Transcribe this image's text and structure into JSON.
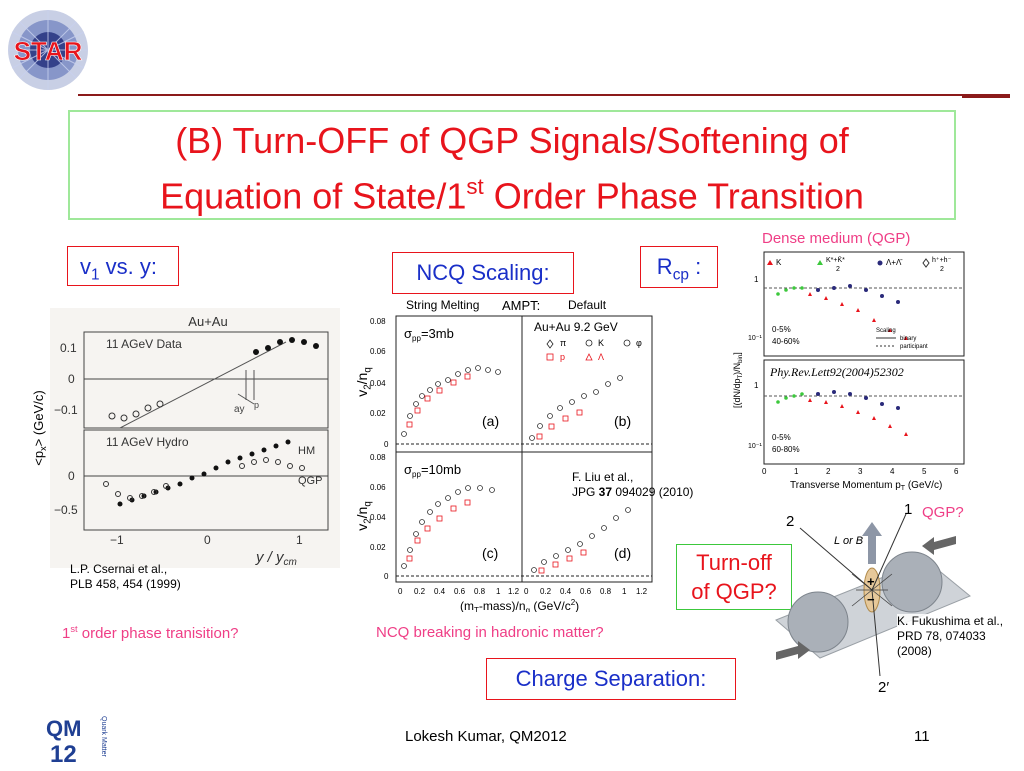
{
  "logos": {
    "star": "STAR",
    "qm_line1": "QM",
    "qm_line2": "12",
    "qm_side": "Quark Matter"
  },
  "title": {
    "line1": "(B) Turn-OFF of QGP Signals/Softening of",
    "line2_pre": "Equation of State/1",
    "line2_sup": "st",
    "line2_post": " Order Phase Transition"
  },
  "sections": {
    "v1_label_pre": "v",
    "v1_label_sub": "1",
    "v1_label_post": " vs. y:",
    "ncq_label": "NCQ Scaling:",
    "rcp_label_pre": "R",
    "rcp_label_sub": "cp",
    "rcp_label_post": " :",
    "charge_sep_label": "Charge Separation:",
    "turn_off_line1": "Turn-off",
    "turn_off_line2": "of QGP?"
  },
  "v1_plot": {
    "ylabel": "<p",
    "ylabel_sub": "x",
    "ylabel_post": "> (GeV/c)",
    "top_title": "Au+Au",
    "top_label": "11 AGeV Data",
    "bottom_label": "11 AGeV Hydro",
    "hm_label": "HM",
    "qgp_label": "QGP",
    "annot": "ay",
    "annot2": "p",
    "yticks_top": [
      "0.1",
      "0",
      "−0.1"
    ],
    "yticks_bottom": [
      "0",
      "−0.5"
    ],
    "xticks": [
      "−1",
      "0",
      "1"
    ],
    "xlabel": "y / y",
    "xlabel_sub": "cm",
    "ref_line1": "L.P.  Csernai et al.,",
    "ref_line2": "PLB  458,  454  (1999)",
    "caption_pre": "1",
    "caption_sup": "st",
    "caption_post": " order phase  tranisition?"
  },
  "ncq_plot": {
    "header_left": "String Melting",
    "header_mid": "AMPT:",
    "header_right": "Default",
    "system": "Au+Au 9.2 GeV",
    "legend": [
      "π",
      "K",
      "φ",
      "p",
      "Λ"
    ],
    "sigma_a": "σ",
    "sigma_a_sub": "pp",
    "sigma_a_val": "=3mb",
    "sigma_b_val": "=10mb",
    "panels": [
      "(a)",
      "(b)",
      "(c)",
      "(d)"
    ],
    "ylabel": "v",
    "ylabel_sub": "2",
    "ylabel_post": "/n",
    "ylabel_sub2": "q",
    "yticks": [
      "0.08",
      "0.06",
      "0.04",
      "0.02",
      "0"
    ],
    "xticks": [
      "0",
      "0.2",
      "0.4",
      "0.6",
      "0.8",
      "1",
      "1.2"
    ],
    "xticks_right": [
      "0",
      "0.2",
      "0.4",
      "0.6",
      "0.8",
      "1",
      "1.2"
    ],
    "xlabel": "(m",
    "xlabel_sub": "T",
    "xlabel_mid": "-mass)/n",
    "xlabel_sub2": "q",
    "xlabel_post": " (GeV/c",
    "xlabel_sup": "2",
    "xlabel_end": ")",
    "ref_line1": "F. Liu et al.,",
    "ref_line2_pre": "JPG ",
    "ref_line2_bold": "37",
    "ref_line2_post": " 094029 (2010)",
    "caption": "NCQ breaking in hadronic matter?"
  },
  "rcp_plot": {
    "top_label": "Dense medium (QGP)",
    "legend": [
      "K",
      "K*+K̄*",
      "Λ+Λ̄",
      "h⁺+h⁻"
    ],
    "legend_denom": "2",
    "ylabel": "[(dN/dp",
    "ylabel_sub": "T",
    "ylabel_mid": ")/N",
    "ylabel_sub2": "bin",
    "ylabel_post": "]",
    "yticks_top": [
      "1",
      "10⁻¹"
    ],
    "yticks_bottom": [
      "1",
      "10⁻¹"
    ],
    "cent_top_1": "0-5%",
    "cent_top_2": "40-60%",
    "cent_bot_1": "0-5%",
    "cent_bot_2": "60-80%",
    "scaling": "Scaling",
    "scaling_binary": "binary",
    "scaling_participant": "participant",
    "journal": "Phy.Rev.Lett92(2004)52302",
    "xticks": [
      "0",
      "1",
      "2",
      "3",
      "4",
      "5",
      "6"
    ],
    "xlabel": "Transverse Momentum p",
    "xlabel_sub": "T",
    "xlabel_post": " (GeV/c)"
  },
  "cme_diagram": {
    "qgp_label": "QGP?",
    "axis_2": "2",
    "axis_1": "1",
    "axis_2prime": "2′",
    "field_label": "L or B",
    "plus": "+",
    "minus": "−",
    "ref_line1": "K. Fukushima et al.,",
    "ref_line2": "PRD 78, 074033",
    "ref_line3": "(2008)"
  },
  "footer": {
    "author": "Lokesh Kumar, QM2012",
    "page": "11"
  },
  "colors": {
    "title_red": "#e8141c",
    "caption_pink": "#ef3e86",
    "frame_green": "#9fe89a",
    "accent_line": "#8b1a1a"
  }
}
